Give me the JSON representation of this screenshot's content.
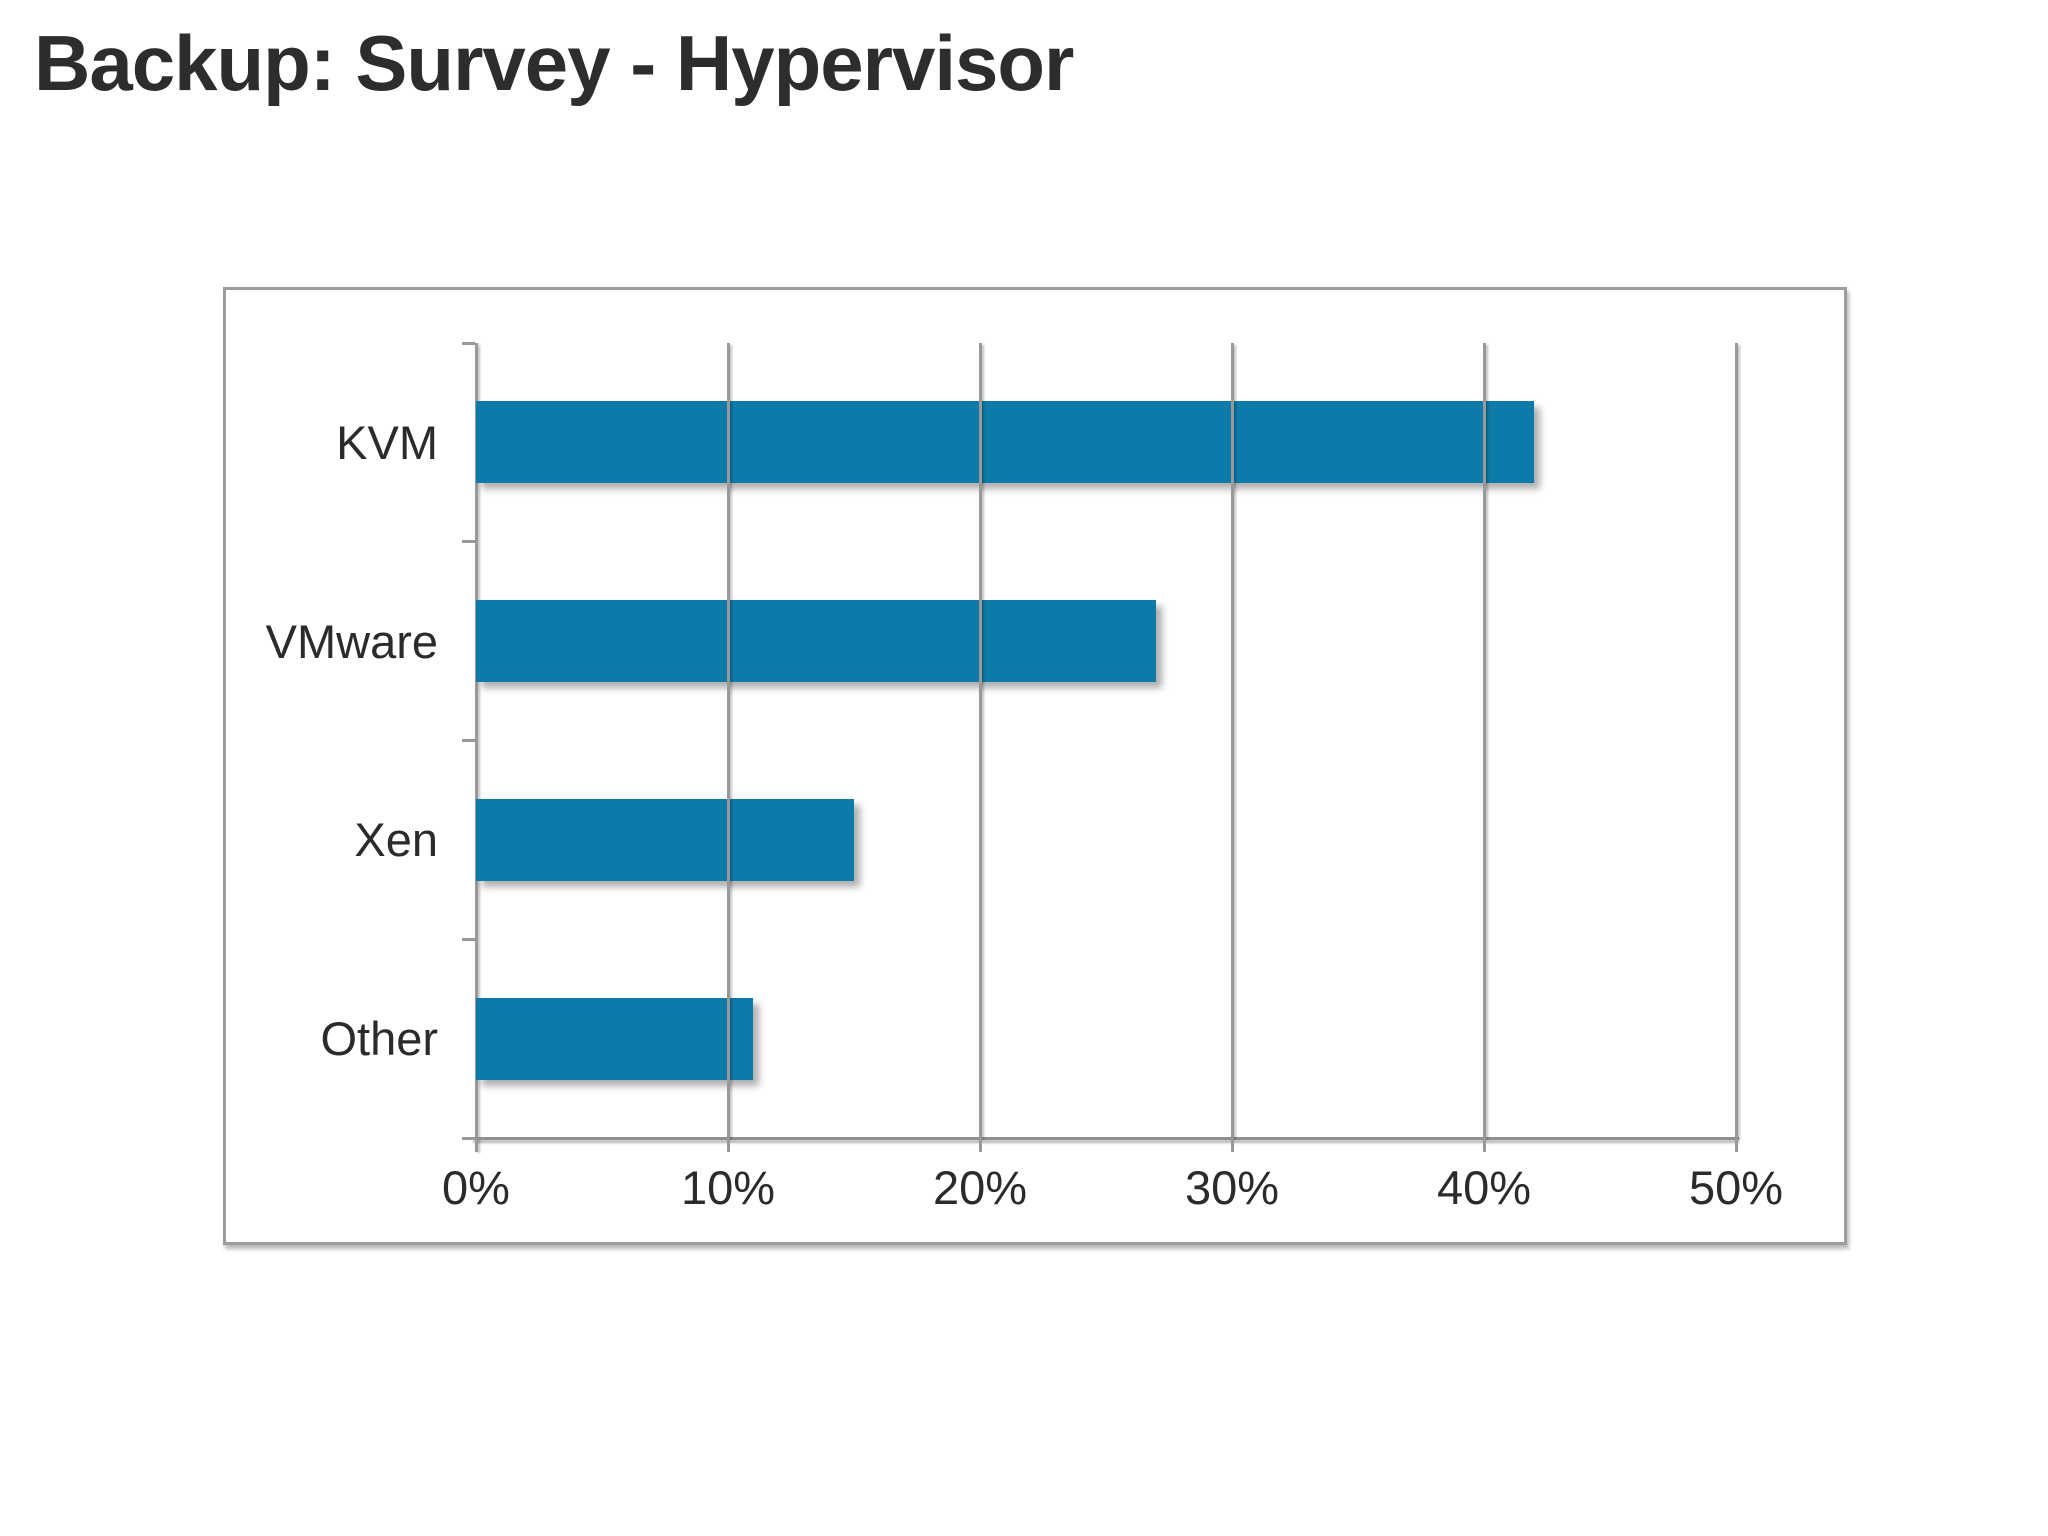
{
  "page": {
    "title": "Backup: Survey - Hypervisor"
  },
  "chart_data": {
    "type": "bar",
    "orientation": "horizontal",
    "title": "Backup: Survey - Hypervisor",
    "categories": [
      "KVM",
      "VMware",
      "Xen",
      "Other"
    ],
    "values": [
      42,
      27,
      15,
      11
    ],
    "unit": "%",
    "xlabel": "",
    "ylabel": "",
    "xlim": [
      0,
      50
    ],
    "x_ticks": [
      "0%",
      "10%",
      "20%",
      "30%",
      "40%",
      "50%"
    ],
    "x_tick_values": [
      0,
      10,
      20,
      30,
      40,
      50
    ],
    "grid": "vertical-gridlines-on",
    "legend": "none",
    "bar_color": "#0d7ba9",
    "grid_color": "#999999",
    "axis_color": "#8f8f8f",
    "label_color": "#2b2b2b",
    "title_color": "#2d2d2d",
    "panel_border_color": "#9c9c9c",
    "background_color": "#ffffff"
  }
}
